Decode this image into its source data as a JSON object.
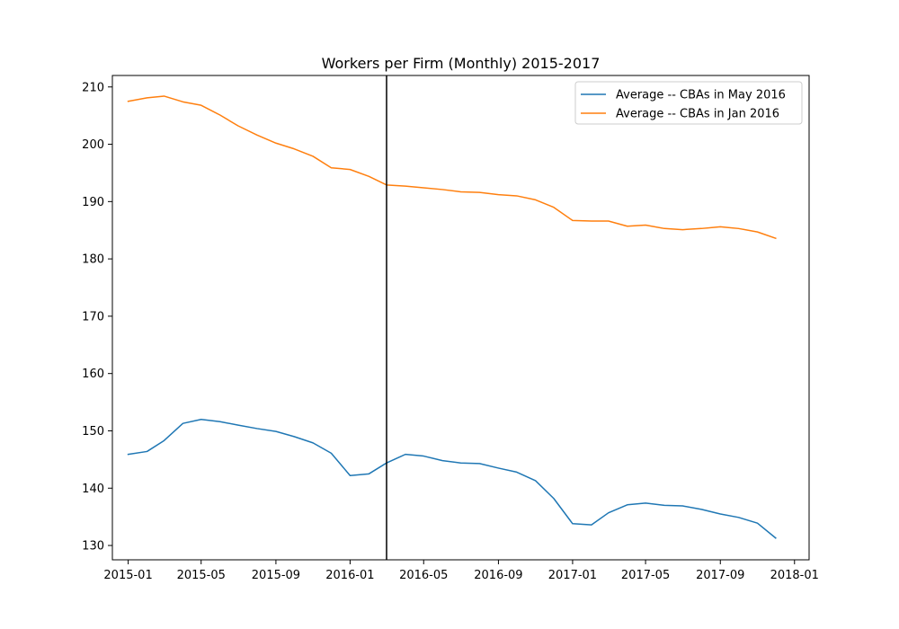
{
  "chart_data": {
    "type": "line",
    "title": "Workers per Firm (Monthly) 2015-2017",
    "xlabel": "",
    "ylabel": "",
    "x": [
      "2015-01",
      "2015-02",
      "2015-03",
      "2015-04",
      "2015-05",
      "2015-06",
      "2015-07",
      "2015-08",
      "2015-09",
      "2015-10",
      "2015-11",
      "2015-12",
      "2016-01",
      "2016-02",
      "2016-03",
      "2016-04",
      "2016-05",
      "2016-06",
      "2016-07",
      "2016-08",
      "2016-09",
      "2016-10",
      "2016-11",
      "2016-12",
      "2017-01",
      "2017-02",
      "2017-03",
      "2017-04",
      "2017-05",
      "2017-06",
      "2017-07",
      "2017-08",
      "2017-09",
      "2017-10",
      "2017-11",
      "2017-12"
    ],
    "xlim": [
      "2014-12-06",
      "2018-01-25"
    ],
    "ylim": [
      127.5,
      212.0
    ],
    "x_ticks": [
      "2015-01",
      "2015-05",
      "2015-09",
      "2016-01",
      "2016-05",
      "2016-09",
      "2017-01",
      "2017-05",
      "2017-09",
      "2018-01"
    ],
    "y_ticks": [
      130,
      140,
      150,
      160,
      170,
      180,
      190,
      200,
      210
    ],
    "vline": {
      "x": "2016-03-01",
      "color": "#000000"
    },
    "series": [
      {
        "name": "Average -- CBAs in May 2016",
        "color": "#1f77b4",
        "values": [
          145.9,
          146.4,
          148.3,
          151.3,
          152.0,
          151.6,
          151.0,
          150.4,
          149.9,
          149.0,
          147.9,
          146.1,
          142.2,
          142.5,
          144.4,
          145.9,
          145.6,
          144.8,
          144.4,
          144.3,
          143.5,
          142.8,
          141.3,
          138.2,
          133.8,
          133.6,
          135.7,
          137.1,
          137.4,
          137.0,
          136.9,
          136.3,
          135.5,
          134.9,
          133.9,
          131.3
        ]
      },
      {
        "name": "Average -- CBAs in Jan 2016",
        "color": "#ff7f0e",
        "values": [
          207.5,
          208.1,
          208.4,
          207.4,
          206.8,
          205.1,
          203.2,
          201.6,
          200.2,
          199.2,
          197.9,
          195.9,
          195.6,
          194.4,
          192.9,
          192.7,
          192.4,
          192.1,
          191.7,
          191.6,
          191.2,
          191.0,
          190.3,
          189.0,
          186.7,
          186.6,
          186.6,
          185.7,
          185.9,
          185.3,
          185.1,
          185.3,
          185.6,
          185.3,
          184.7,
          183.6
        ]
      }
    ],
    "legend": {
      "placement": "upper right"
    },
    "grid": false
  }
}
